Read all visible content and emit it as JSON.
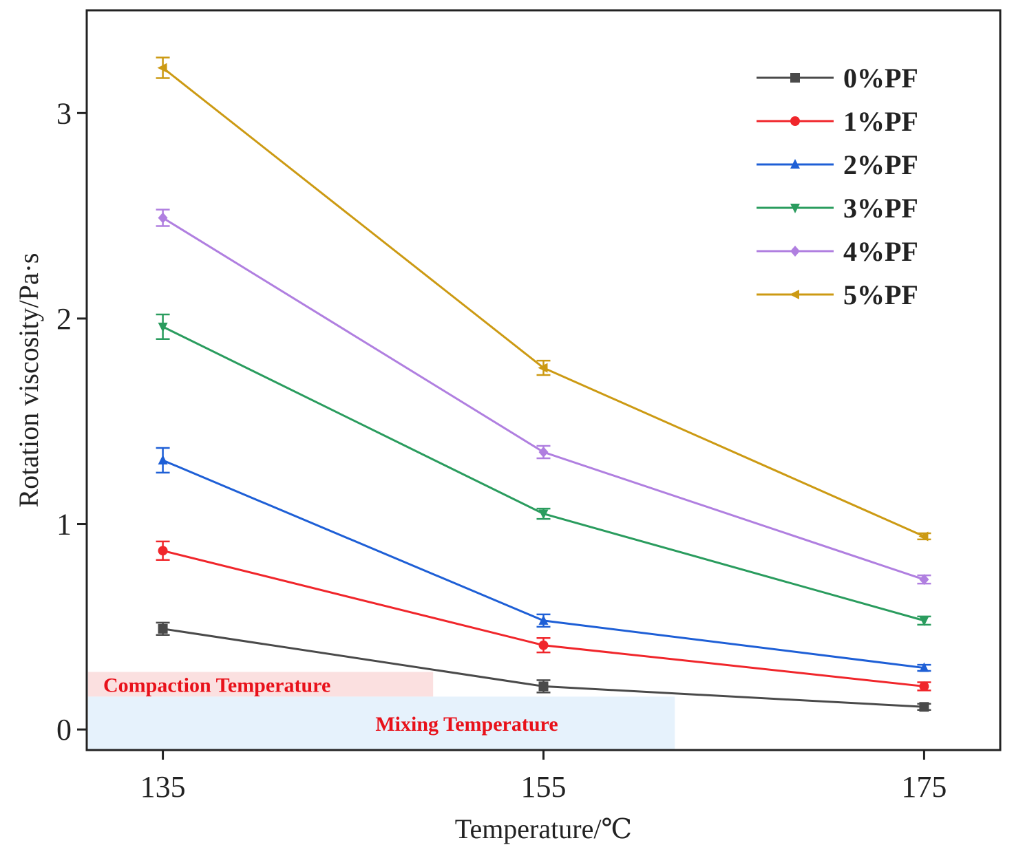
{
  "chart_data": {
    "type": "line",
    "xlabel": "Temperature/℃",
    "ylabel": "Rotation viscosity/Pa·s",
    "x": [
      135,
      155,
      175
    ],
    "x_tick_labels": [
      "135",
      "155",
      "175"
    ],
    "y_tick_labels": [
      "0",
      "1",
      "2",
      "3"
    ],
    "xlim": [
      131,
      179
    ],
    "ylim": [
      -0.1,
      3.5
    ],
    "legend_position": "top-right",
    "series": [
      {
        "name": "0%PF",
        "color": "#4a4a4a",
        "marker": "square",
        "values": [
          0.49,
          0.21,
          0.11
        ],
        "errors": [
          0.03,
          0.03,
          0.015
        ]
      },
      {
        "name": "1%PF",
        "color": "#f0262b",
        "marker": "circle",
        "values": [
          0.87,
          0.41,
          0.21
        ],
        "errors": [
          0.045,
          0.035,
          0.02
        ]
      },
      {
        "name": "2%PF",
        "color": "#1e5fd6",
        "marker": "triangle-up",
        "values": [
          1.31,
          0.53,
          0.3
        ],
        "errors": [
          0.06,
          0.03,
          0.015
        ]
      },
      {
        "name": "3%PF",
        "color": "#2a9c5e",
        "marker": "triangle-down",
        "values": [
          1.96,
          1.05,
          0.53
        ],
        "errors": [
          0.06,
          0.025,
          0.02
        ]
      },
      {
        "name": "4%PF",
        "color": "#b07fe0",
        "marker": "diamond",
        "values": [
          2.49,
          1.35,
          0.73
        ],
        "errors": [
          0.04,
          0.03,
          0.02
        ]
      },
      {
        "name": "5%PF",
        "color": "#cc9a13",
        "marker": "triangle-left",
        "values": [
          3.22,
          1.76,
          0.94
        ],
        "errors": [
          0.05,
          0.035,
          0.015
        ]
      }
    ],
    "annotations": [
      {
        "text": "Compaction Temperature",
        "x_range": [
          131,
          149.2
        ],
        "y_range": [
          0.16,
          0.28
        ],
        "fill": "#fbe0e0"
      },
      {
        "text": "Mixing Temperature",
        "x_range": [
          131,
          161.9
        ],
        "y_range": [
          -0.1,
          0.16
        ],
        "fill": "#e6f2fc"
      }
    ]
  }
}
